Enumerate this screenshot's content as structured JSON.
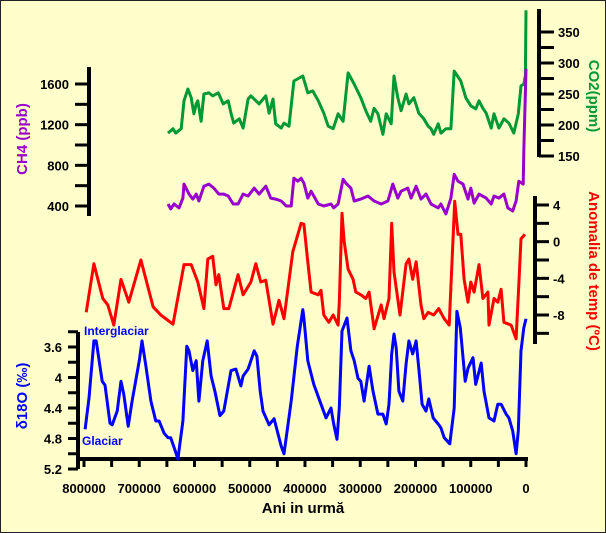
{
  "chart_data": {
    "type": "line",
    "x_axis": {
      "label": "Ani in urmă",
      "range": [
        800000,
        0
      ],
      "tick_labels": [
        "800000",
        "700000",
        "600000",
        "500000",
        "400000",
        "300000",
        "200000",
        "100000",
        "0"
      ],
      "tick_values": [
        800000,
        700000,
        600000,
        500000,
        400000,
        300000,
        200000,
        100000,
        0
      ]
    },
    "annotations": {
      "interglacial": "Interglaciar",
      "glacial": "Glaciar"
    },
    "series": [
      {
        "name": "CO2",
        "axis_title": "CO2(ppm)",
        "color": "#009933",
        "axis_side": "right",
        "range": [
          150,
          385
        ],
        "tick_labels": [
          "150",
          "200",
          "250",
          "300",
          "350"
        ],
        "tick_values": [
          150,
          200,
          250,
          300,
          350
        ],
        "x_kyr": [
          648,
          639,
          634,
          624,
          619,
          612,
          606,
          601,
          597,
          594,
          588,
          583,
          574,
          567,
          557,
          548,
          539,
          534,
          529,
          519,
          512,
          503,
          498,
          483,
          471,
          465,
          458,
          453,
          443,
          438,
          429,
          420,
          404,
          395,
          386,
          376,
          366,
          358,
          349,
          340,
          331,
          322,
          311,
          299,
          290,
          281,
          275,
          268,
          259,
          253,
          244,
          239,
          232,
          226,
          217,
          212,
          203,
          194,
          185,
          177,
          172,
          167,
          159,
          154,
          145,
          136,
          130,
          118,
          109,
          100,
          91,
          85,
          78,
          72,
          63,
          58,
          49,
          40,
          31,
          22,
          14,
          9,
          4,
          1,
          0
        ],
        "values": [
          187,
          194,
          187,
          194,
          239,
          258,
          244,
          218,
          234,
          239,
          206,
          250,
          252,
          247,
          252,
          234,
          239,
          219,
          203,
          210,
          195,
          242,
          247,
          234,
          247,
          219,
          242,
          202,
          195,
          203,
          198,
          271,
          279,
          252,
          255,
          239,
          219,
          198,
          194,
          218,
          206,
          284,
          266,
          244,
          223,
          206,
          227,
          218,
          185,
          218,
          202,
          279,
          244,
          223,
          250,
          234,
          244,
          219,
          210,
          198,
          194,
          185,
          202,
          187,
          194,
          194,
          287,
          271,
          244,
          231,
          226,
          239,
          227,
          219,
          195,
          218,
          195,
          210,
          203,
          187,
          218,
          263,
          266,
          280,
          385
        ]
      },
      {
        "name": "CH4",
        "axis_title": "CH4 (ppb)",
        "color": "#9900CC",
        "axis_side": "left",
        "range": [
          300,
          1800
        ],
        "tick_labels": [
          "400",
          "800",
          "1200",
          "1600"
        ],
        "tick_values": [
          400,
          800,
          1200,
          1600
        ],
        "x_kyr": [
          648,
          643,
          637,
          628,
          621,
          619,
          610,
          603,
          597,
          592,
          583,
          574,
          565,
          556,
          547,
          539,
          530,
          521,
          512,
          503,
          492,
          483,
          471,
          462,
          453,
          443,
          434,
          425,
          420,
          413,
          407,
          402,
          395,
          389,
          376,
          366,
          353,
          348,
          340,
          331,
          326,
          317,
          311,
          299,
          286,
          275,
          262,
          250,
          241,
          232,
          226,
          214,
          208,
          199,
          190,
          181,
          172,
          159,
          154,
          145,
          136,
          130,
          123,
          114,
          105,
          100,
          94,
          85,
          72,
          63,
          58,
          49,
          40,
          33,
          24,
          18,
          13,
          5,
          4,
          0
        ],
        "values": [
          420,
          371,
          420,
          381,
          478,
          615,
          517,
          468,
          517,
          449,
          595,
          615,
          576,
          517,
          517,
          498,
          420,
          420,
          517,
          498,
          576,
          517,
          595,
          478,
          468,
          449,
          400,
          400,
          673,
          644,
          673,
          624,
          478,
          546,
          420,
          400,
          420,
          381,
          420,
          663,
          624,
          576,
          449,
          468,
          498,
          449,
          420,
          449,
          615,
          478,
          546,
          576,
          478,
          595,
          468,
          517,
          420,
          381,
          420,
          322,
          478,
          712,
          644,
          615,
          468,
          576,
          429,
          517,
          478,
          420,
          498,
          478,
          517,
          381,
          351,
          449,
          644,
          615,
          937,
          1750
        ]
      },
      {
        "name": "Temperature anomaly",
        "axis_title": "Anomalia de temp (ºC)",
        "color": "#FF0000",
        "axis_side": "right",
        "range": [
          -10,
          4.5
        ],
        "tick_labels": [
          "4",
          "0",
          "-4",
          "-8"
        ],
        "tick_values": [
          4,
          0,
          -4,
          -8
        ],
        "x_kyr": [
          796,
          782,
          766,
          757,
          746,
          733,
          719,
          697,
          675,
          661,
          639,
          619,
          606,
          594,
          583,
          576,
          567,
          561,
          556,
          547,
          538,
          521,
          512,
          498,
          489,
          480,
          471,
          458,
          447,
          438,
          422,
          407,
          402,
          395,
          389,
          376,
          371,
          366,
          357,
          349,
          340,
          338,
          333,
          329,
          322,
          313,
          308,
          299,
          290,
          284,
          275,
          262,
          257,
          248,
          243,
          239,
          228,
          217,
          212,
          205,
          199,
          190,
          185,
          177,
          167,
          158,
          148,
          139,
          129,
          123,
          118,
          112,
          105,
          100,
          94,
          85,
          78,
          69,
          67,
          58,
          51,
          45,
          40,
          27,
          18,
          13,
          9,
          2
        ],
        "values": [
          -7.7,
          -2.4,
          -6.2,
          -6.9,
          -9.1,
          -4.1,
          -6.6,
          -2.0,
          -7.1,
          -8.0,
          -9.0,
          -2.5,
          -2.5,
          -4.4,
          -7.3,
          -1.9,
          -1.6,
          -4.7,
          -3.6,
          -7.3,
          -7.3,
          -3.6,
          -5.8,
          -4.4,
          -2.4,
          -4.4,
          -4.2,
          -9.0,
          -6.4,
          -8.4,
          -1.1,
          2.0,
          1.9,
          -2.2,
          -5.5,
          -5.8,
          -5.3,
          -8.0,
          -8.8,
          -8.0,
          -9.1,
          -6.6,
          3.1,
          0,
          -3.0,
          -4.1,
          -5.5,
          -5.8,
          -6.2,
          -5.5,
          -9.5,
          -6.9,
          -8.4,
          -6.2,
          2.0,
          -3.3,
          -8.0,
          -2.4,
          -1.9,
          -4.1,
          -2.2,
          -6.9,
          -8.4,
          -7.7,
          -8.0,
          -7.3,
          -8.4,
          -9.1,
          4.4,
          0.8,
          0.8,
          -4.1,
          -6.6,
          -4.4,
          -5.5,
          -2.5,
          -6.2,
          -5.5,
          -9.1,
          -6.2,
          -6.6,
          -5.2,
          -8.8,
          -9.1,
          -10.6,
          -4.7,
          0.3,
          0.8
        ]
      },
      {
        "name": "δ18O",
        "axis_title": "δ18O (‰)",
        "color": "#0000FF",
        "axis_side": "left",
        "range": [
          5.2,
          3.1
        ],
        "tick_labels": [
          "3.6",
          "4",
          "4.4",
          "4.8",
          "5.2"
        ],
        "tick_values": [
          3.6,
          4,
          4.4,
          4.8,
          5.2
        ],
        "x_kyr": [
          798,
          791,
          782,
          778,
          767,
          762,
          753,
          749,
          740,
          733,
          728,
          720,
          713,
          700,
          695,
          688,
          679,
          670,
          664,
          655,
          648,
          643,
          635,
          630,
          621,
          614,
          610,
          603,
          597,
          592,
          585,
          577,
          570,
          563,
          554,
          547,
          534,
          525,
          516,
          512,
          503,
          498,
          492,
          487,
          481,
          476,
          465,
          456,
          443,
          438,
          425,
          414,
          404,
          402,
          395,
          384,
          371,
          362,
          353,
          348,
          342,
          338,
          333,
          324,
          317,
          311,
          304,
          299,
          293,
          284,
          277,
          268,
          259,
          253,
          248,
          243,
          239,
          235,
          230,
          223,
          217,
          212,
          205,
          199,
          194,
          188,
          181,
          176,
          168,
          159,
          154,
          148,
          138,
          130,
          125,
          119,
          110,
          105,
          96,
          91,
          81,
          76,
          67,
          58,
          51,
          45,
          36,
          31,
          24,
          18,
          14,
          9,
          4,
          0
        ],
        "values": [
          4.68,
          4.27,
          3.52,
          3.52,
          4.05,
          4.1,
          4.6,
          4.62,
          4.44,
          4.05,
          4.22,
          4.64,
          4.31,
          3.78,
          3.52,
          3.85,
          4.31,
          4.57,
          4.57,
          4.73,
          4.79,
          4.79,
          4.96,
          5.07,
          4.57,
          3.59,
          3.65,
          3.91,
          3.78,
          4.31,
          3.78,
          3.52,
          3.98,
          4.18,
          4.5,
          4.44,
          3.91,
          3.89,
          4.11,
          3.98,
          3.89,
          3.78,
          3.65,
          3.72,
          4.18,
          4.44,
          4.62,
          4.54,
          4.9,
          5.0,
          4.31,
          3.59,
          3.11,
          3.22,
          3.78,
          4.09,
          4.35,
          4.53,
          4.4,
          4.61,
          4.81,
          4.4,
          3.39,
          3.22,
          3.65,
          3.78,
          4.01,
          4.05,
          4.31,
          3.85,
          4.18,
          4.48,
          4.48,
          4.61,
          4.35,
          3.69,
          3.43,
          3.61,
          4.18,
          4.31,
          3.82,
          3.52,
          3.69,
          3.52,
          3.88,
          4.35,
          4.44,
          4.28,
          4.53,
          4.61,
          4.66,
          4.79,
          4.87,
          4.4,
          3.13,
          3.35,
          4.05,
          3.88,
          3.74,
          4.09,
          3.81,
          4.18,
          4.53,
          4.57,
          4.35,
          4.35,
          4.48,
          4.53,
          4.7,
          5.0,
          4.7,
          3.65,
          3.35,
          3.23
        ]
      }
    ]
  }
}
